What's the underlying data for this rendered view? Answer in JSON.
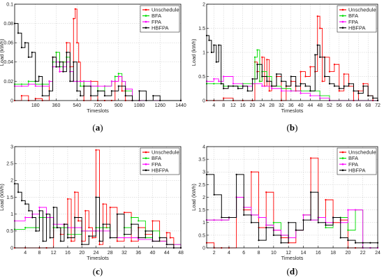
{
  "colors": {
    "Unschedule": "#ff0000",
    "BFA": "#00dd00",
    "FPA": "#ff00ff",
    "HBFPA": "#000000"
  },
  "chart_data": [
    {
      "type": "line",
      "caption": "(a)",
      "xlabel": "Timeslots",
      "ylabel": "Load (kWh)",
      "xlim": [
        0,
        1440
      ],
      "ylim": [
        0,
        0.1
      ],
      "xticks": [
        180,
        360,
        540,
        720,
        900,
        1080,
        1260,
        1440
      ],
      "yticks": [
        0,
        0.02,
        0.04,
        0.06,
        0.08,
        0.1
      ],
      "yticklabels": [
        "0",
        "0.02",
        "0.04",
        "0.06",
        "0.08",
        "0.1"
      ],
      "legend": "top-right",
      "grid": true,
      "series": [
        {
          "name": "Unschedule",
          "x": [
            0,
            60,
            120,
            180,
            240,
            300,
            330,
            360,
            390,
            420,
            450,
            480,
            510,
            525,
            540,
            555,
            570,
            600,
            660,
            720,
            780,
            840,
            870,
            900,
            930,
            960,
            1020,
            1080,
            1440
          ],
          "y": [
            0.0,
            0.005,
            0.0,
            0.002,
            0.0,
            0.02,
            0.045,
            0.05,
            0.03,
            0.04,
            0.06,
            0.035,
            0.085,
            0.095,
            0.06,
            0.04,
            0.02,
            0.0,
            0.02,
            0.0,
            0.0,
            0.0,
            0.02,
            0.025,
            0.01,
            0.0,
            0.0,
            0.0,
            0.0
          ]
        },
        {
          "name": "BFA",
          "x": [
            0,
            60,
            120,
            180,
            240,
            300,
            330,
            360,
            390,
            420,
            450,
            480,
            510,
            540,
            570,
            600,
            660,
            720,
            780,
            840,
            870,
            900,
            930,
            960,
            1020,
            1080,
            1440
          ],
          "y": [
            0.017,
            0.017,
            0.02,
            0.017,
            0.017,
            0.02,
            0.04,
            0.05,
            0.035,
            0.04,
            0.045,
            0.03,
            0.02,
            0.02,
            0.015,
            0.02,
            0.015,
            0.01,
            0.015,
            0.02,
            0.025,
            0.028,
            0.02,
            0.01,
            0.0,
            0.0,
            0.0
          ]
        },
        {
          "name": "FPA",
          "x": [
            0,
            60,
            120,
            180,
            240,
            300,
            330,
            360,
            390,
            420,
            450,
            480,
            510,
            540,
            570,
            600,
            660,
            720,
            780,
            840,
            870,
            900,
            930,
            960,
            1020,
            1080,
            1440
          ],
          "y": [
            0.015,
            0.015,
            0.017,
            0.015,
            0.015,
            0.02,
            0.035,
            0.04,
            0.03,
            0.035,
            0.04,
            0.03,
            0.02,
            0.02,
            0.02,
            0.02,
            0.015,
            0.015,
            0.015,
            0.02,
            0.02,
            0.025,
            0.02,
            0.012,
            0.0,
            0.0,
            0.0
          ]
        },
        {
          "name": "HBFPA",
          "x": [
            0,
            30,
            60,
            90,
            120,
            150,
            180,
            210,
            240,
            300,
            330,
            360,
            390,
            420,
            450,
            480,
            510,
            540,
            570,
            600,
            660,
            720,
            780,
            840,
            900,
            960,
            1020,
            1080,
            1140,
            1200,
            1260,
            1440
          ],
          "y": [
            0.08,
            0.07,
            0.055,
            0.06,
            0.045,
            0.05,
            0.02,
            0.025,
            0.005,
            0.01,
            0.045,
            0.035,
            0.04,
            0.03,
            0.05,
            0.02,
            0.04,
            0.01,
            0.005,
            0.015,
            0.005,
            0.01,
            0.005,
            0.01,
            0.015,
            0.005,
            0.0,
            0.01,
            0.0,
            0.005,
            0.0,
            0.0
          ]
        }
      ]
    },
    {
      "type": "line",
      "caption": "(b)",
      "xlabel": "Timeslots",
      "ylabel": "Load (kWh)",
      "xlim": [
        1,
        72
      ],
      "ylim": [
        0,
        2
      ],
      "xticks": [
        4,
        8,
        12,
        16,
        20,
        24,
        28,
        32,
        36,
        40,
        44,
        48,
        52,
        56,
        60,
        64,
        68,
        72
      ],
      "yticks": [
        0,
        0.5,
        1,
        1.5,
        2
      ],
      "yticklabels": [
        "0",
        "0.5",
        "1",
        "1.5",
        "2"
      ],
      "legend": "top-right",
      "grid": true,
      "series": [
        {
          "name": "Unschedule",
          "x": [
            1,
            4,
            8,
            12,
            16,
            20,
            21,
            22,
            23,
            24,
            25,
            26,
            27,
            28,
            30,
            32,
            34,
            36,
            38,
            40,
            42,
            44,
            46,
            47,
            48,
            49,
            50,
            52,
            54,
            56,
            58,
            60,
            62,
            64,
            66,
            68,
            70,
            72
          ],
          "y": [
            0.0,
            0.0,
            0.05,
            0.0,
            0.0,
            0.0,
            0.8,
            0.6,
            0.4,
            0.9,
            0.3,
            0.85,
            0.2,
            0.3,
            0.5,
            0.0,
            0.3,
            0.4,
            0.2,
            0.6,
            0.5,
            0.7,
            0.6,
            1.75,
            1.5,
            0.4,
            0.9,
            0.6,
            0.75,
            0.2,
            0.55,
            0.3,
            0.0,
            0.2,
            0.35,
            0.1,
            0.0,
            0.0
          ]
        },
        {
          "name": "BFA",
          "x": [
            1,
            4,
            8,
            12,
            16,
            20,
            21,
            22,
            23,
            24,
            26,
            28,
            32,
            36,
            40,
            44,
            48,
            52,
            72
          ],
          "y": [
            0.35,
            0.35,
            0.3,
            0.3,
            0.35,
            0.35,
            0.9,
            1.05,
            0.4,
            0.6,
            0.5,
            0.3,
            0.25,
            0.2,
            0.2,
            0.2,
            0.1,
            0.0,
            0.0
          ]
        },
        {
          "name": "FPA",
          "x": [
            1,
            4,
            6,
            8,
            12,
            16,
            20,
            24,
            28,
            32,
            36,
            40,
            44,
            48,
            52,
            72
          ],
          "y": [
            0.4,
            0.45,
            0.4,
            0.5,
            0.35,
            0.3,
            0.35,
            0.3,
            0.25,
            0.2,
            0.2,
            0.15,
            0.1,
            0.05,
            0.0,
            0.0
          ]
        },
        {
          "name": "HBFPA",
          "x": [
            1,
            2,
            3,
            4,
            5,
            6,
            7,
            8,
            10,
            12,
            14,
            16,
            18,
            20,
            22,
            24,
            26,
            28,
            30,
            32,
            34,
            36,
            38,
            40,
            42,
            44,
            46,
            47,
            48,
            50,
            52,
            54,
            56,
            58,
            60,
            62,
            64,
            66,
            68,
            70,
            72
          ],
          "y": [
            1.35,
            1.25,
            1.0,
            1.15,
            0.8,
            1.15,
            0.35,
            0.25,
            0.3,
            0.3,
            0.25,
            0.3,
            0.2,
            0.45,
            0.75,
            0.5,
            0.4,
            0.3,
            0.55,
            0.4,
            0.3,
            0.5,
            0.3,
            0.35,
            0.3,
            0.2,
            0.95,
            1.15,
            0.9,
            0.5,
            0.35,
            0.3,
            0.25,
            0.3,
            0.35,
            0.2,
            0.15,
            0.3,
            0.1,
            0.05,
            0.0
          ]
        }
      ]
    },
    {
      "type": "line",
      "caption": "(c)",
      "xlabel": "Timeslots",
      "ylabel": "Load (kWh)",
      "xlim": [
        1,
        48
      ],
      "ylim": [
        0,
        3
      ],
      "xticks": [
        4,
        8,
        12,
        16,
        20,
        24,
        28,
        32,
        36,
        40,
        44,
        48
      ],
      "yticks": [
        0,
        0.5,
        1,
        1.5,
        2,
        2.5,
        3
      ],
      "yticklabels": [
        "0",
        "0.5",
        "1",
        "1.5",
        "2",
        "2.5",
        "3"
      ],
      "legend": "top-right",
      "grid": true,
      "series": [
        {
          "name": "Unschedule",
          "x": [
            1,
            4,
            8,
            10,
            12,
            14,
            15,
            16,
            17,
            18,
            19,
            20,
            21,
            22,
            23,
            24,
            25,
            26,
            27,
            28,
            30,
            32,
            34,
            36,
            38,
            40,
            42,
            44,
            45,
            46,
            48
          ],
          "y": [
            0.0,
            0.0,
            0.0,
            0.0,
            0.6,
            0.4,
            0.7,
            1.45,
            0.2,
            1.65,
            0.8,
            0.2,
            1.1,
            0.6,
            0.3,
            2.9,
            0.1,
            1.3,
            0.6,
            1.2,
            0.2,
            1.05,
            0.2,
            0.6,
            0.4,
            0.8,
            0.2,
            0.45,
            0.3,
            0.0,
            0.0
          ]
        },
        {
          "name": "BFA",
          "x": [
            1,
            4,
            8,
            12,
            16,
            20,
            24,
            28,
            32,
            34,
            36,
            38,
            40,
            42,
            44,
            48
          ],
          "y": [
            0.55,
            0.6,
            0.9,
            0.6,
            0.4,
            0.5,
            0.6,
            0.3,
            0.6,
            0.9,
            0.8,
            0.3,
            0.5,
            0.2,
            0.1,
            0.0
          ]
        },
        {
          "name": "FPA",
          "x": [
            1,
            4,
            6,
            8,
            10,
            12,
            16,
            20,
            24,
            28,
            32,
            36,
            40,
            44,
            48
          ],
          "y": [
            0.8,
            0.9,
            1.0,
            1.2,
            0.9,
            0.7,
            0.6,
            0.5,
            0.5,
            0.3,
            0.3,
            0.25,
            0.2,
            0.1,
            0.0
          ]
        },
        {
          "name": "HBFPA",
          "x": [
            1,
            2,
            3,
            4,
            5,
            6,
            7,
            8,
            9,
            10,
            11,
            12,
            13,
            14,
            15,
            16,
            18,
            20,
            22,
            24,
            25,
            26,
            28,
            30,
            32,
            34,
            36,
            38,
            40,
            42,
            44,
            46,
            48
          ],
          "y": [
            1.9,
            1.65,
            1.4,
            1.3,
            1.1,
            0.9,
            0.5,
            1.1,
            0.2,
            1.0,
            0.3,
            1.2,
            0.6,
            0.2,
            0.7,
            0.3,
            0.9,
            0.1,
            0.35,
            1.5,
            0.2,
            0.7,
            0.3,
            1.0,
            0.4,
            0.7,
            0.3,
            0.5,
            0.2,
            0.3,
            0.1,
            0.0,
            0.0
          ]
        }
      ]
    },
    {
      "type": "line",
      "caption": "(d)",
      "xlabel": "Timeslots",
      "ylabel": "Load (kWh)",
      "xlim": [
        1,
        24
      ],
      "ylim": [
        0,
        4
      ],
      "xticks": [
        2,
        4,
        6,
        8,
        10,
        12,
        14,
        16,
        18,
        20,
        22,
        24
      ],
      "yticks": [
        0,
        0.5,
        1,
        1.5,
        2,
        2.5,
        3,
        3.5,
        4
      ],
      "yticklabels": [
        "0",
        "0.5",
        "1",
        "1.5",
        "2",
        "2.5",
        "3",
        "3.5",
        "4"
      ],
      "legend": "top-right",
      "grid": true,
      "series": [
        {
          "name": "Unschedule",
          "x": [
            1,
            2,
            3,
            4,
            5,
            6,
            7,
            8,
            9,
            10,
            11,
            12,
            13,
            14,
            15,
            16,
            17,
            18,
            19,
            20,
            21,
            22,
            23,
            24
          ],
          "y": [
            0.2,
            0.0,
            0.0,
            0.0,
            2.0,
            1.5,
            3.0,
            0.8,
            2.2,
            0.7,
            0.4,
            0.2,
            0.7,
            1.3,
            3.55,
            1.2,
            1.9,
            1.0,
            1.1,
            0.0,
            0.0,
            0.0,
            0.0,
            0.0
          ]
        },
        {
          "name": "BFA",
          "x": [
            1,
            2,
            3,
            4,
            5,
            6,
            7,
            8,
            9,
            10,
            11,
            12,
            13,
            14,
            15,
            16,
            17,
            18,
            19,
            20,
            21,
            22,
            23,
            24
          ],
          "y": [
            1.1,
            1.1,
            1.1,
            1.2,
            2.0,
            1.6,
            1.3,
            1.2,
            0.9,
            1.0,
            0.5,
            0.4,
            0.7,
            1.3,
            1.1,
            1.2,
            0.8,
            1.2,
            1.2,
            0.7,
            1.5,
            0.0,
            0.0,
            0.0
          ]
        },
        {
          "name": "FPA",
          "x": [
            1,
            2,
            3,
            4,
            5,
            6,
            7,
            8,
            9,
            10,
            11,
            12,
            13,
            14,
            15,
            16,
            17,
            18,
            19,
            20,
            21,
            22,
            23,
            24
          ],
          "y": [
            1.1,
            1.1,
            1.1,
            1.2,
            2.0,
            1.6,
            1.3,
            1.2,
            0.9,
            0.7,
            0.5,
            0.4,
            0.7,
            1.3,
            1.1,
            1.2,
            1.0,
            1.2,
            1.0,
            1.5,
            1.5,
            0.0,
            0.0,
            0.0
          ]
        },
        {
          "name": "HBFPA",
          "x": [
            1,
            2,
            3,
            4,
            5,
            6,
            7,
            8,
            9,
            10,
            11,
            12,
            13,
            14,
            15,
            16,
            17,
            18,
            19,
            20,
            21,
            22,
            23,
            24
          ],
          "y": [
            2.9,
            2.1,
            1.2,
            1.2,
            2.9,
            1.3,
            1.0,
            0.3,
            0.8,
            0.5,
            0.2,
            1.0,
            0.7,
            1.1,
            2.2,
            1.0,
            0.9,
            1.2,
            0.4,
            0.3,
            0.2,
            0.2,
            0.2,
            0.2
          ]
        }
      ]
    }
  ]
}
